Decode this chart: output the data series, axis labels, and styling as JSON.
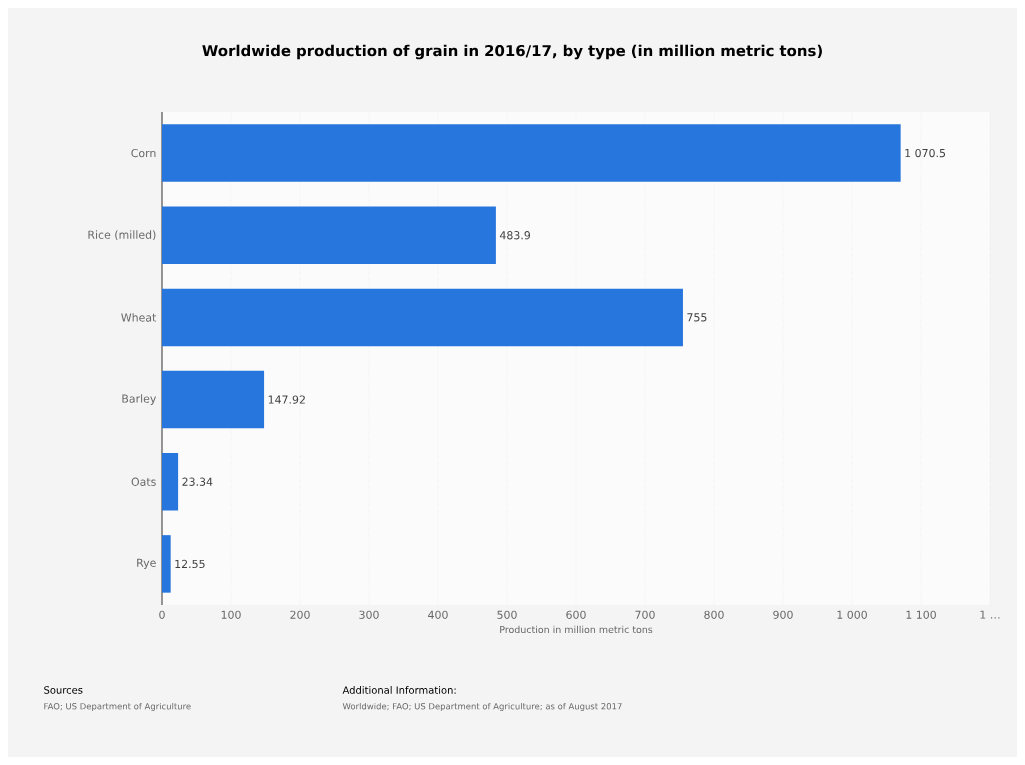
{
  "chart_data": {
    "type": "bar",
    "orientation": "horizontal",
    "title": "Worldwide production of grain in 2016/17, by type (in million metric tons)",
    "xlabel": "Production in million metric tons",
    "categories": [
      "Corn",
      "Rice (milled)",
      "Wheat",
      "Barley",
      "Oats",
      "Rye"
    ],
    "values": [
      1070.5,
      483.9,
      755,
      147.92,
      23.34,
      12.55
    ],
    "value_labels": [
      "1 070.5",
      "483.9",
      "755",
      "147.92",
      "23.34",
      "12.55"
    ],
    "color": "#2776dd",
    "xlim": [
      0,
      1200
    ],
    "xticks": [
      0,
      100,
      200,
      300,
      400,
      500,
      600,
      700,
      800,
      900,
      {
        "value": 1000,
        "label": "1 000"
      },
      {
        "value": 1100,
        "label": "1 100"
      },
      {
        "value": 1200,
        "label": "1 …"
      }
    ],
    "grid": "x",
    "annotations": [
      "Sources",
      "FAO; US Department of Agriculture",
      "Additional Information:",
      "Worldwide; FAO; US Department of Agriculture; as of August 2017"
    ]
  }
}
